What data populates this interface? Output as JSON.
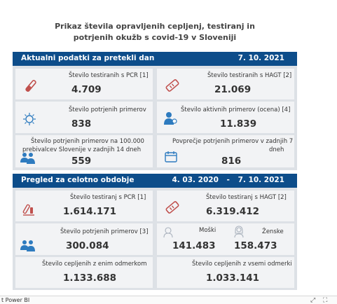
{
  "title": {
    "line1": "Prikaz števila opravljenih cepljenj, testiranj in",
    "line2": "potrjenih okužb s covid-19 v Sloveniji"
  },
  "section1": {
    "label": "Aktualni podatki za pretekli dan",
    "date": "7. 10. 2021",
    "tiles": {
      "pcr": {
        "label": "Število testiranih s PCR [1]",
        "value": "4.709",
        "icon": "test-tube-icon"
      },
      "hagt": {
        "label": "Število testiranih s HAGT [2]",
        "value": "21.069",
        "icon": "rapid-test-icon"
      },
      "confirmed": {
        "label": "Število potrjenih primerov",
        "value": "838",
        "icon": "virus-icon"
      },
      "active": {
        "label": "Število aktivnih primerov (ocena) [4]",
        "value": "11.839",
        "icon": "person-virus-icon"
      },
      "per100k": {
        "label1": "Število potrjenih primerov na 100.000",
        "label2": "prebivalcev Slovenije v zadnjih 14 dneh",
        "value": "559",
        "icon": "people-group-icon"
      },
      "avg7": {
        "label1": "Povprečje potrjenih primerov v zadnjih 7",
        "label2": "dneh",
        "value": "816",
        "icon": "calendar-icon"
      }
    }
  },
  "section2": {
    "label": "Pregled za celotno obdobje",
    "date_from": "4. 03. 2020",
    "dash": "-",
    "date_to": "7. 10. 2021",
    "tiles": {
      "pcr": {
        "label": "Število testiranj s PCR [1]",
        "value": "1.614.171",
        "icon": "lab-flask-icon"
      },
      "hagt": {
        "label": "Število testiranj s HAGT [2]",
        "value": "6.319.412",
        "icon": "rapid-test-icon"
      },
      "confirmed": {
        "label": "Število potrjenih primerov [3]",
        "value": "300.084",
        "icon": "people-group-icon"
      },
      "male": {
        "label": "Moški",
        "value": "141.483",
        "icon": "male-icon"
      },
      "female": {
        "label": "Ženske",
        "value": "158.473",
        "icon": "female-icon"
      },
      "one_dose": {
        "label": "Število cepljenih z enim odmerkom",
        "value": "1.133.688"
      },
      "all_doses": {
        "label": "Število cepljenih z vsemi odmerki",
        "value": "1.033.141"
      }
    }
  },
  "footer": {
    "brand": "t Power BI",
    "controls": [
      "share-icon",
      "fullscreen-icon"
    ]
  },
  "colors": {
    "header_bar": "#0d4d8a",
    "panel_bg": "#dde1e6",
    "tile_bg": "#f2f3f5",
    "icon_red": "#c0504d",
    "icon_blue": "#2e7bbf"
  }
}
